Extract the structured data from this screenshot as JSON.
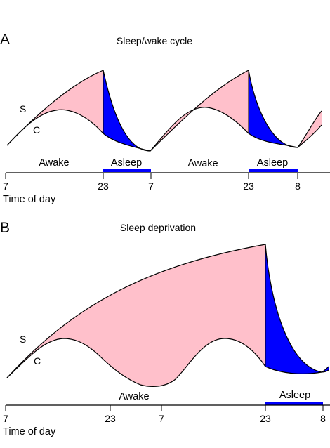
{
  "panel_a": {
    "letter": "A",
    "title": "Sleep/wake cycle",
    "s_label": "S",
    "c_label": "C",
    "phases": {
      "awake_1": "Awake",
      "asleep_1": "Asleep",
      "awake_2": "Awake",
      "asleep_2": "Asleep"
    },
    "ticks": [
      "7",
      "23",
      "7",
      "23",
      "8"
    ],
    "axis_title": "Time of day"
  },
  "panel_b": {
    "letter": "B",
    "title": "Sleep deprivation",
    "s_label": "S",
    "c_label": "C",
    "phases": {
      "awake": "Awake",
      "asleep": "Asleep"
    },
    "ticks": [
      "7",
      "23",
      "7",
      "23",
      "8"
    ],
    "axis_title": "Time of day"
  },
  "colors": {
    "awake_fill": "#ffc0cb",
    "asleep_fill": "#0000ff",
    "sleep_bar": "#0000ff",
    "line": "#000000"
  }
}
